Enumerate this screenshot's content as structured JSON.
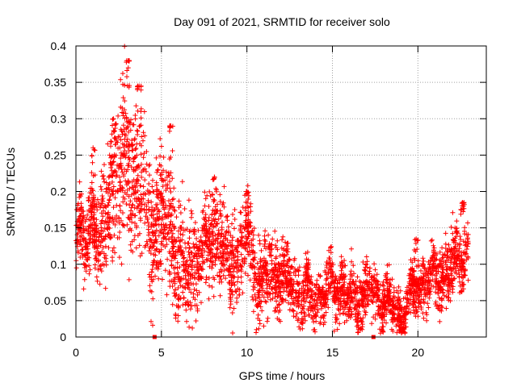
{
  "chart_data": {
    "type": "scatter",
    "title": "Day 091 of 2021, SRMTID for receiver solo",
    "xlabel": "GPS time / hours",
    "ylabel": "SRMTID / TECUs",
    "xlim": [
      0,
      24.0
    ],
    "ylim": [
      0,
      0.4
    ],
    "x_ticks": [
      0,
      5,
      10,
      15,
      20
    ],
    "x_tick_labels": [
      "0",
      "5",
      "10",
      "15",
      "20"
    ],
    "y_ticks": [
      0,
      0.05,
      0.1,
      0.15,
      0.2,
      0.25,
      0.3,
      0.35,
      0.4
    ],
    "y_tick_labels": [
      "0",
      "0.05",
      "0.1",
      "0.15",
      "0.2",
      "0.25",
      "0.3",
      "0.35",
      "0.4"
    ],
    "grid": true,
    "marker": "plus",
    "color": "#ff0000",
    "gap_markers_x": [
      4.6,
      17.4
    ],
    "series": [
      {
        "name": "SRMTID",
        "trend": {
          "x": [
            0,
            0.3,
            0.6,
            1.0,
            1.3,
            1.6,
            2.0,
            2.3,
            2.6,
            3.0,
            3.3,
            3.6,
            4.0,
            4.4,
            4.8,
            5.2,
            5.6,
            6.0,
            6.5,
            7.0,
            7.5,
            8.0,
            8.3,
            8.7,
            9.2,
            9.6,
            10.0,
            10.3,
            10.6,
            11.0,
            11.5,
            12.0,
            12.5,
            13.0,
            13.5,
            14.0,
            14.5,
            15.0,
            15.5,
            16.0,
            16.5,
            17.0,
            17.5,
            18.0,
            18.5,
            19.0,
            19.5,
            20.0,
            20.5,
            21.0,
            21.5,
            22.0,
            22.5,
            22.9
          ],
          "y": [
            0.13,
            0.15,
            0.12,
            0.18,
            0.12,
            0.14,
            0.2,
            0.22,
            0.21,
            0.25,
            0.22,
            0.2,
            0.19,
            0.14,
            0.16,
            0.17,
            0.14,
            0.1,
            0.09,
            0.1,
            0.12,
            0.14,
            0.15,
            0.12,
            0.1,
            0.11,
            0.15,
            0.12,
            0.08,
            0.08,
            0.08,
            0.09,
            0.08,
            0.06,
            0.06,
            0.05,
            0.06,
            0.07,
            0.07,
            0.05,
            0.05,
            0.06,
            0.06,
            0.05,
            0.04,
            0.03,
            0.05,
            0.07,
            0.08,
            0.08,
            0.09,
            0.09,
            0.11,
            0.12
          ]
        },
        "spread": {
          "x": [
            0,
            2,
            3,
            4,
            6,
            10,
            13,
            17,
            19,
            22,
            23
          ],
          "amplitude": [
            0.02,
            0.04,
            0.06,
            0.05,
            0.035,
            0.03,
            0.02,
            0.02,
            0.015,
            0.025,
            0.02
          ]
        },
        "peaks": [
          {
            "x": 3.05,
            "y": 0.38
          },
          {
            "x": 2.2,
            "y": 0.3
          },
          {
            "x": 3.7,
            "y": 0.345
          },
          {
            "x": 5.55,
            "y": 0.29
          },
          {
            "x": 1.0,
            "y": 0.26
          },
          {
            "x": 8.1,
            "y": 0.22
          },
          {
            "x": 10.0,
            "y": 0.2
          },
          {
            "x": 22.6,
            "y": 0.185
          },
          {
            "x": 19.9,
            "y": 0.135
          }
        ],
        "points_per_hour": 160,
        "x_range": [
          0,
          22.95
        ]
      }
    ]
  }
}
